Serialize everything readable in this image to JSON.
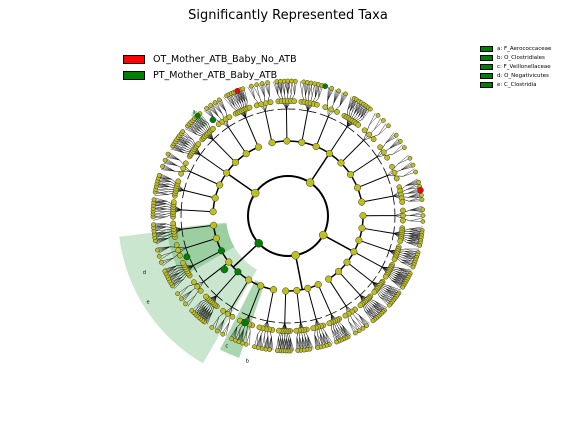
{
  "chart_data": {
    "type": "cladogram",
    "title": "Significantly Represented Taxa",
    "classes": [
      {
        "name": "OT_Mother_ATB_Baby_No_ATB",
        "color": "#ff0000"
      },
      {
        "name": "PT_Mother_ATB_Baby_ATB",
        "color": "#008000"
      }
    ],
    "clade_labels": [
      {
        "key": "a",
        "taxon": "a: F_Aerococcaceae",
        "class": "PT_Mother_ATB_Baby_ATB"
      },
      {
        "key": "b",
        "taxon": "b: O_Clostridiales",
        "class": "PT_Mother_ATB_Baby_ATB"
      },
      {
        "key": "c",
        "taxon": "c: F_Veillonellaceae",
        "class": "PT_Mother_ATB_Baby_ATB"
      },
      {
        "key": "d",
        "taxon": "d: O_Negativicutes",
        "class": "PT_Mother_ATB_Baby_ATB"
      },
      {
        "key": "e",
        "taxon": "e: C_Clostridia",
        "class": "PT_Mother_ATB_Baby_ATB"
      }
    ],
    "legend_placement": "top-left",
    "key_placement": "top-right",
    "node_color_default": "#bfbf1e",
    "shade_color": "#2e9a3a"
  }
}
